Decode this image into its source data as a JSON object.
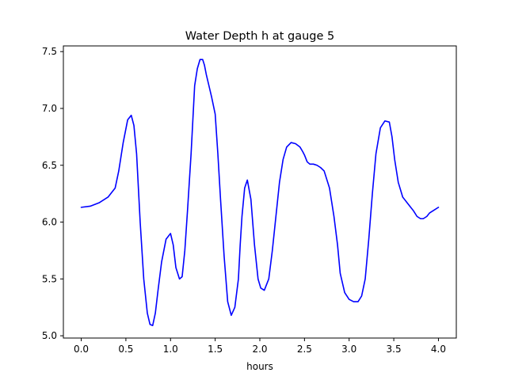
{
  "chart_data": {
    "type": "line",
    "title": "Water Depth h at gauge 5",
    "xlabel": "hours",
    "ylabel": "",
    "xlim": [
      -0.2,
      4.2
    ],
    "ylim": [
      4.98,
      7.55
    ],
    "xticks": [
      0.0,
      0.5,
      1.0,
      1.5,
      2.0,
      2.5,
      3.0,
      3.5,
      4.0
    ],
    "xtick_labels": [
      "0.0",
      "0.5",
      "1.0",
      "1.5",
      "2.0",
      "2.5",
      "3.0",
      "3.5",
      "4.0"
    ],
    "yticks": [
      5.0,
      5.5,
      6.0,
      6.5,
      7.0,
      7.5
    ],
    "ytick_labels": [
      "5.0",
      "5.5",
      "6.0",
      "6.5",
      "7.0",
      "7.5"
    ],
    "grid": false,
    "legend": "none",
    "series": [
      {
        "color": "#0000ff",
        "x": [
          0.0,
          0.1,
          0.2,
          0.3,
          0.38,
          0.42,
          0.47,
          0.52,
          0.56,
          0.59,
          0.62,
          0.66,
          0.7,
          0.74,
          0.77,
          0.8,
          0.83,
          0.86,
          0.9,
          0.95,
          1.0,
          1.03,
          1.06,
          1.1,
          1.13,
          1.16,
          1.19,
          1.23,
          1.27,
          1.3,
          1.33,
          1.36,
          1.38,
          1.4,
          1.43,
          1.46,
          1.5,
          1.53,
          1.56,
          1.6,
          1.64,
          1.68,
          1.72,
          1.76,
          1.78,
          1.8,
          1.83,
          1.86,
          1.9,
          1.94,
          1.98,
          2.01,
          2.05,
          2.1,
          2.14,
          2.18,
          2.22,
          2.26,
          2.3,
          2.35,
          2.4,
          2.45,
          2.48,
          2.5,
          2.53,
          2.56,
          2.6,
          2.64,
          2.68,
          2.72,
          2.78,
          2.83,
          2.87,
          2.9,
          2.95,
          3.0,
          3.05,
          3.1,
          3.14,
          3.18,
          3.22,
          3.26,
          3.3,
          3.35,
          3.4,
          3.45,
          3.48,
          3.51,
          3.55,
          3.6,
          3.64,
          3.68,
          3.72,
          3.76,
          3.8,
          3.83,
          3.87,
          3.9,
          3.94,
          4.0
        ],
        "y": [
          6.13,
          6.14,
          6.17,
          6.22,
          6.3,
          6.45,
          6.7,
          6.9,
          6.94,
          6.85,
          6.6,
          6.0,
          5.5,
          5.2,
          5.1,
          5.09,
          5.2,
          5.4,
          5.65,
          5.85,
          5.9,
          5.8,
          5.6,
          5.5,
          5.52,
          5.75,
          6.1,
          6.6,
          7.2,
          7.35,
          7.43,
          7.43,
          7.38,
          7.3,
          7.2,
          7.1,
          6.95,
          6.6,
          6.2,
          5.7,
          5.3,
          5.18,
          5.25,
          5.5,
          5.8,
          6.05,
          6.3,
          6.37,
          6.2,
          5.8,
          5.5,
          5.42,
          5.4,
          5.5,
          5.75,
          6.05,
          6.35,
          6.55,
          6.66,
          6.7,
          6.69,
          6.66,
          6.62,
          6.59,
          6.53,
          6.51,
          6.51,
          6.5,
          6.48,
          6.45,
          6.3,
          6.05,
          5.8,
          5.55,
          5.38,
          5.32,
          5.3,
          5.3,
          5.35,
          5.5,
          5.85,
          6.25,
          6.6,
          6.83,
          6.89,
          6.88,
          6.75,
          6.55,
          6.35,
          6.22,
          6.18,
          6.14,
          6.1,
          6.05,
          6.03,
          6.03,
          6.05,
          6.08,
          6.1,
          6.13
        ]
      }
    ]
  }
}
